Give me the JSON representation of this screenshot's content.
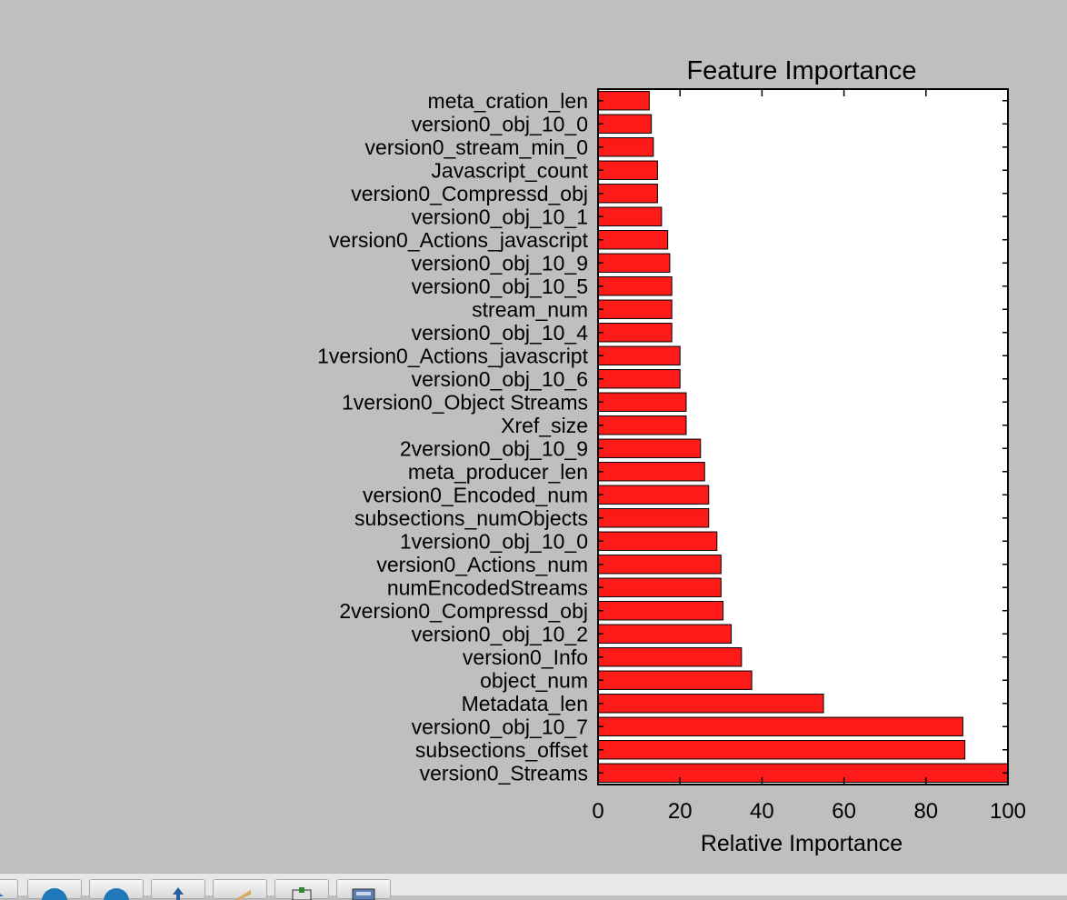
{
  "chart_data": {
    "type": "bar",
    "orientation": "horizontal",
    "title": "Feature Importance",
    "xlabel": "Relative Importance",
    "ylabel": "",
    "xlim": [
      0,
      100
    ],
    "xticks": [
      0,
      20,
      40,
      60,
      80,
      100
    ],
    "bar_color": "#ff1a1a",
    "grid": false,
    "categories": [
      "meta_cration_len",
      "version0_obj_10_0",
      "version0_stream_min_0",
      "Javascript_count",
      "version0_Compressd_obj",
      "version0_obj_10_1",
      "version0_Actions_javascript",
      "version0_obj_10_9",
      "version0_obj_10_5",
      "stream_num",
      "version0_obj_10_4",
      "1version0_Actions_javascript",
      "version0_obj_10_6",
      "1version0_Object Streams",
      "Xref_size",
      "2version0_obj_10_9",
      "meta_producer_len",
      "version0_Encoded_num",
      "subsections_numObjects",
      "1version0_obj_10_0",
      "version0_Actions_num",
      "numEncodedStreams",
      "2version0_Compressd_obj",
      "version0_obj_10_2",
      "version0_Info",
      "object_num",
      "Metadata_len",
      "version0_obj_10_7",
      "subsections_offset",
      "version0_Streams"
    ],
    "values": [
      12.5,
      13,
      13.5,
      14.5,
      14.5,
      15.5,
      17,
      17.5,
      18,
      18,
      18,
      20,
      20,
      21.5,
      21.5,
      25,
      26,
      27,
      27,
      29,
      30,
      30,
      30.5,
      32.5,
      35,
      37.5,
      55,
      89,
      89.5,
      100
    ]
  },
  "toolbar": {
    "buttons": [
      {
        "icon": "home-icon"
      },
      {
        "icon": "back-arrow-icon"
      },
      {
        "icon": "forward-arrow-icon"
      },
      {
        "icon": "pan-icon"
      },
      {
        "icon": "zoom-icon"
      },
      {
        "icon": "configure-subplots-icon"
      },
      {
        "icon": "save-icon"
      }
    ]
  }
}
